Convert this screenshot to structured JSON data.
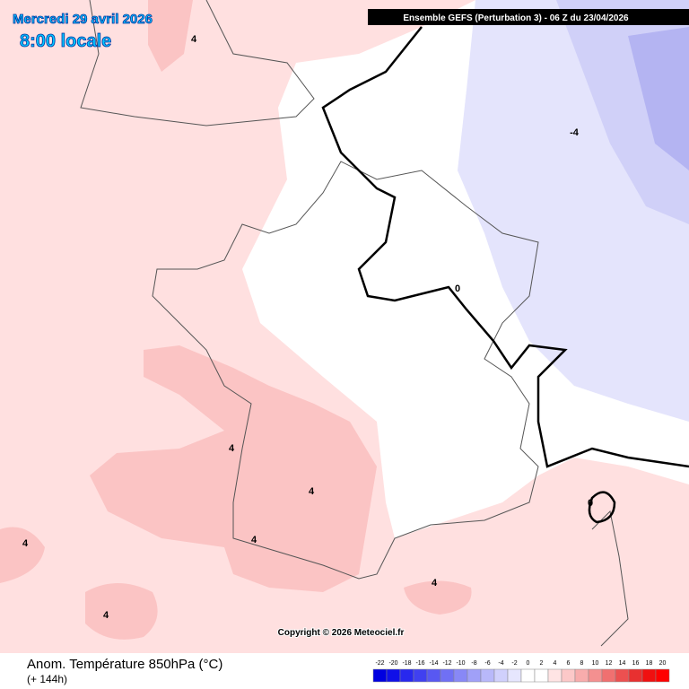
{
  "header": {
    "date": "Mercredi 29 avril 2026",
    "time": "8:00 locale",
    "run": "Ensemble GEFS  (Perturbation 3)  -  06 Z du 23/04/2026"
  },
  "map": {
    "contour_labels": [
      "4",
      "-4",
      "4",
      "4",
      "4",
      "4",
      "4",
      "4",
      "0",
      "0"
    ],
    "copyright": "Copyright © 2026 Meteociel.fr"
  },
  "footer": {
    "title": "Anom. Température 850hPa (°C)",
    "lead": "(+ 144h)"
  },
  "legend": {
    "ticks": [
      -22,
      -20,
      -18,
      -16,
      -14,
      -12,
      -10,
      -8,
      -6,
      -4,
      -2,
      0,
      2,
      4,
      6,
      8,
      10,
      12,
      14,
      16,
      18,
      20
    ],
    "colors": [
      "#0000e0",
      "#1010e8",
      "#2828ee",
      "#4040f0",
      "#5858f2",
      "#7070f4",
      "#8888f6",
      "#a0a0f8",
      "#b8b8fa",
      "#d0d0fc",
      "#e6e6fe",
      "#ffffff",
      "#ffffff",
      "#ffe4e4",
      "#fcc8c8",
      "#f8acac",
      "#f49090",
      "#f07070",
      "#ec5050",
      "#e83030",
      "#f01010",
      "#ff0000"
    ]
  }
}
